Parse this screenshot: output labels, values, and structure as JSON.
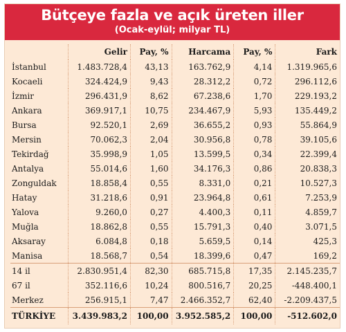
{
  "header": {
    "title": "Bütçeye fazla ve açık üreten iller",
    "subtitle": "(Ocak-eylül; milyar TL)"
  },
  "table": {
    "columns": [
      "",
      "Gelir",
      "Pay, %",
      "Harcama",
      "Pay, %",
      "Fark"
    ],
    "rows": [
      [
        "İstanbul",
        "1.483.728,4",
        "43,13",
        "163.762,9",
        "4,14",
        "1.319.965,6"
      ],
      [
        "Kocaeli",
        "324.424,9",
        "9,43",
        "28.312,2",
        "0,72",
        "296.112,6"
      ],
      [
        "İzmir",
        "296.431,9",
        "8,62",
        "67.238,6",
        "1,70",
        "229.193,2"
      ],
      [
        "Ankara",
        "369.917,1",
        "10,75",
        "234.467,9",
        "5,93",
        "135.449,2"
      ],
      [
        "Bursa",
        "92.520,1",
        "2,69",
        "36.655,2",
        "0,93",
        "55.864,9"
      ],
      [
        "Mersin",
        "70.062,3",
        "2,04",
        "30.956,8",
        "0,78",
        "39.105,6"
      ],
      [
        "Tekirdağ",
        "35.998,9",
        "1,05",
        "13.599,5",
        "0,34",
        "22.399,4"
      ],
      [
        "Antalya",
        "55.014,6",
        "1,60",
        "34.176,3",
        "0,86",
        "20.838,3"
      ],
      [
        "Zonguldak",
        "18.858,4",
        "0,55",
        "8.331,0",
        "0,21",
        "10.527,3"
      ],
      [
        "Hatay",
        "31.218,6",
        "0,91",
        "23.964,8",
        "0,61",
        "7.253,9"
      ],
      [
        "Yalova",
        "9.260,0",
        "0,27",
        "4.400,3",
        "0,11",
        "4.859,7"
      ],
      [
        "Muğla",
        "18.862,8",
        "0,55",
        "15.791,3",
        "0,40",
        "3.071,5"
      ],
      [
        "Aksaray",
        "6.084,8",
        "0,18",
        "5.659,5",
        "0,14",
        "425,3"
      ],
      [
        "Manisa",
        "18.568,7",
        "0,54",
        "18.399,6",
        "0,47",
        "169,2"
      ],
      [
        "14 il",
        "2.830.951,4",
        "82,30",
        "685.715,8",
        "17,35",
        "2.145.235,7"
      ],
      [
        "67 il",
        "352.116,6",
        "10,24",
        "800.516,7",
        "20,25",
        "-448.400,1"
      ],
      [
        "Merkez",
        "256.915,1",
        "7,47",
        "2.466.352,7",
        "62,40",
        "-2.209.437,5"
      ],
      [
        "TÜRKİYE",
        "3.439.983,2",
        "100,00",
        "3.952.585,2",
        "100,00",
        "-512.602,0"
      ]
    ]
  }
}
